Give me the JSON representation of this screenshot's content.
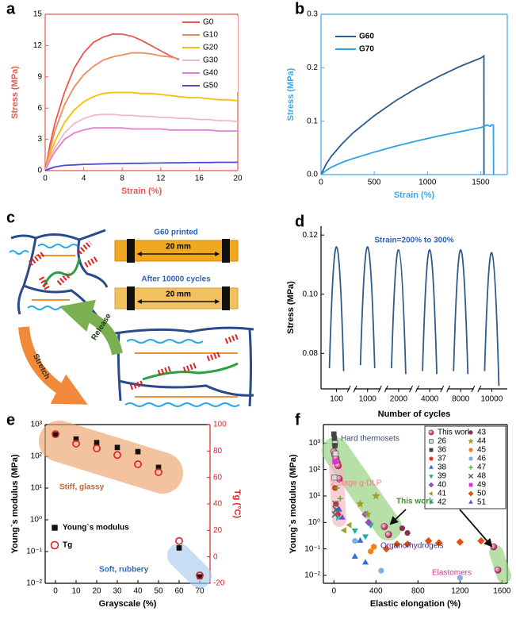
{
  "chart_data": [
    {
      "panel": "a",
      "type": "line",
      "x_label": "Strain (%)",
      "y_label": "Stress (MPa)",
      "axis_color": "#e8584f",
      "legend": "upper right",
      "xlim": [
        0,
        20
      ],
      "ylim": [
        0,
        15
      ],
      "xticks": [
        0,
        4,
        8,
        12,
        16,
        20
      ],
      "yticks": [
        0,
        3,
        6,
        9,
        12,
        15
      ],
      "x": [
        0,
        0.5,
        1,
        2,
        3,
        4,
        5,
        6,
        7,
        8,
        9,
        10,
        11,
        12,
        13,
        14,
        15,
        16,
        17,
        18,
        19,
        20
      ],
      "series": [
        {
          "name": "G0",
          "color": "#e8584f",
          "values": [
            0,
            2.5,
            4.5,
            7.5,
            9.8,
            11.3,
            12.3,
            12.8,
            13.1,
            13.1,
            12.9,
            12.5,
            12,
            11.5,
            11,
            10.6,
            null,
            null,
            null,
            null,
            null,
            null
          ]
        },
        {
          "name": "G10",
          "color": "#ef8a5c",
          "values": [
            0,
            2,
            3.8,
            6.3,
            8,
            9.2,
            10,
            10.6,
            10.9,
            11.1,
            11.3,
            11.3,
            11.2,
            11,
            10.9,
            10.7,
            10.5,
            10.4,
            10.3,
            10.2,
            10.1,
            10.0
          ]
        },
        {
          "name": "G20",
          "color": "#f2c200",
          "values": [
            0,
            1.5,
            2.8,
            4.6,
            5.8,
            6.6,
            7.1,
            7.4,
            7.5,
            7.5,
            7.5,
            7.4,
            7.4,
            7.3,
            7.2,
            7.1,
            7,
            7,
            6.9,
            6.8,
            6.8,
            6.7
          ]
        },
        {
          "name": "G30",
          "color": "#f2b8c8",
          "values": [
            0,
            1.2,
            2.2,
            3.6,
            4.5,
            5,
            5.3,
            5.4,
            5.4,
            5.3,
            5.3,
            5.2,
            5.2,
            5.1,
            5.1,
            5,
            5,
            4.9,
            4.9,
            4.8,
            4.8,
            4.7
          ]
        },
        {
          "name": "G40",
          "color": "#e47fd8",
          "values": [
            0,
            1,
            1.8,
            3,
            3.6,
            3.9,
            4.1,
            4.1,
            4.1,
            4.1,
            4,
            4,
            4,
            4,
            3.9,
            3.9,
            3.9,
            3.9,
            3.9,
            3.8,
            3.8,
            3.8
          ]
        },
        {
          "name": "G50",
          "color": "#4e4bd0",
          "values": [
            0,
            0.2,
            0.35,
            0.5,
            0.55,
            0.6,
            0.62,
            0.65,
            0.67,
            0.68,
            0.7,
            0.7,
            0.72,
            0.73,
            0.75,
            0.75,
            0.77,
            0.78,
            0.78,
            0.8,
            0.8,
            0.8
          ]
        }
      ]
    },
    {
      "panel": "b",
      "type": "line",
      "x_label": "Strain (%)",
      "y_label": "Stress (MPa)",
      "axis_color": "#3ea6e8",
      "legend": "upper left",
      "xlim": [
        0,
        1750
      ],
      "ylim": [
        0,
        0.3
      ],
      "xticks": [
        0,
        500,
        1000,
        1500
      ],
      "yticks": [
        {
          "value": 0,
          "label": "0.0"
        },
        0.1,
        0.2,
        0.3
      ],
      "x": [
        0,
        50,
        100,
        200,
        300,
        500,
        700,
        900,
        1100,
        1300,
        1500,
        1530,
        1531,
        1560,
        1590,
        1600,
        1620,
        1621
      ],
      "series": [
        {
          "name": "G60",
          "color": "#2f5a8a",
          "values": [
            0,
            0.02,
            0.035,
            0.058,
            0.078,
            0.11,
            0.138,
            0.162,
            0.183,
            0.202,
            0.218,
            0.222,
            0,
            null,
            null,
            null,
            null,
            null
          ]
        },
        {
          "name": "G70",
          "color": "#29a3e6",
          "values": [
            0,
            0.008,
            0.014,
            0.023,
            0.03,
            0.042,
            0.053,
            0.063,
            0.072,
            0.08,
            0.088,
            0.09,
            0.09,
            0.093,
            0.09,
            0.093,
            0.093,
            0
          ]
        }
      ]
    },
    {
      "panel": "d",
      "type": "cycles",
      "annotation": "Strain=200% to 300%",
      "x_label": "Number of cycles",
      "y_label": "Stress (MPa)",
      "color": "#2f5a8a",
      "ylim": [
        0.068,
        0.123
      ],
      "yticks": [
        0.08,
        {
          "value": 0.1,
          "label": "0.10"
        },
        0.12
      ],
      "categories": [
        "100",
        "1000",
        "2000",
        "4000",
        "8000",
        "10000"
      ],
      "start": [
        0.075,
        0.076,
        0.075,
        0.074,
        0.074,
        0.074
      ],
      "peak": [
        0.116,
        0.116,
        0.115,
        0.115,
        0.115,
        0.114
      ],
      "end": [
        0.074,
        0.075,
        0.073,
        0.073,
        0.073,
        0.069
      ]
    },
    {
      "panel": "e",
      "type": "scatter",
      "x_label": "Grayscale (%)",
      "y_label": "Young`s modulus (MPa)",
      "y2_label": "Tg (°C)",
      "y2_color": "#e02020",
      "legend": "lower left",
      "xlim": [
        -5,
        75
      ],
      "xticks": [
        0,
        10,
        20,
        30,
        40,
        50,
        60,
        70
      ],
      "ylim": [
        0.01,
        1000
      ],
      "log_y": true,
      "yticks": [
        {
          "value": 0.01,
          "label": "10⁻²"
        },
        {
          "value": 0.1,
          "label": "10⁻¹"
        },
        {
          "value": 1,
          "label": "10⁰"
        },
        {
          "value": 10,
          "label": "10¹"
        },
        {
          "value": 100,
          "label": "10²"
        },
        {
          "value": 1000,
          "label": "10³"
        }
      ],
      "y2lim": [
        -20,
        100
      ],
      "y2ticks": [
        -20,
        0,
        20,
        40,
        60,
        80,
        100
      ],
      "x": [
        0,
        10,
        20,
        30,
        40,
        50,
        60,
        70
      ],
      "annotations": [
        {
          "text": "Stiff, glassy",
          "color": "#c8642a"
        },
        {
          "text": "Soft, rubbery",
          "color": "#2a6ad0"
        }
      ],
      "series": [
        {
          "name": "Young`s modulus",
          "color": "#111111",
          "marker": "square",
          "values": [
            480,
            350,
            270,
            190,
            140,
            45,
            0.13,
            0.016
          ]
        },
        {
          "name": "Tg",
          "color": "#e02020",
          "marker": "circle-open",
          "axis": "y2",
          "values": [
            92.8,
            85.6,
            82,
            77,
            70,
            64,
            12,
            -14
          ]
        }
      ]
    },
    {
      "panel": "f",
      "type": "scatter",
      "x_label": "Elastic elongation (%)",
      "y_label": "Young`s modulus (MPa)",
      "legend": "upper right",
      "legend_columns": 2,
      "xlim": [
        -100,
        1650
      ],
      "xticks": [
        0,
        400,
        800,
        1200,
        1600
      ],
      "ylim": [
        0.005,
        5000
      ],
      "log_y": true,
      "yticks": [
        {
          "value": 0.01,
          "label": "10⁻²"
        },
        {
          "value": 0.1,
          "label": "10⁻¹"
        },
        {
          "value": 1,
          "label": "10⁰"
        },
        {
          "value": 10,
          "label": "10¹"
        },
        {
          "value": 100,
          "label": "10²"
        },
        {
          "value": 1000,
          "label": "10³"
        }
      ],
      "annotations": [
        {
          "text": "Hard thermosets",
          "color": "#3a4a6a"
        },
        {
          "text": "2-stage g-DLP",
          "color": "#f07a8a"
        },
        {
          "text": "This work",
          "color": "#3f8f2a"
        },
        {
          "text": "Organo/hydrogels",
          "color": "#4b2a90"
        },
        {
          "text": "Elastomers",
          "color": "#e0309a"
        }
      ],
      "series": [
        {
          "name": "This work",
          "color": "#d9417f",
          "marker": "sphere",
          "x": [
            0,
            10,
            20,
            30,
            40,
            50,
            480,
            520,
            1520,
            1560
          ],
          "values": [
            480,
            350,
            270,
            190,
            140,
            45,
            0.7,
            0.35,
            0.12,
            0.016
          ]
        },
        {
          "name": "26",
          "color": "#777777",
          "marker": "square-hatched",
          "x": [
            10,
            15,
            5
          ],
          "values": [
            1000,
            400,
            50
          ]
        },
        {
          "name": "36",
          "color": "#444444",
          "marker": "square",
          "x": [
            0,
            5,
            10
          ],
          "values": [
            2200,
            1500,
            800
          ]
        },
        {
          "name": "37",
          "color": "#e03030",
          "marker": "circle",
          "x": [
            10,
            20,
            40
          ],
          "values": [
            20,
            5,
            2
          ]
        },
        {
          "name": "38",
          "color": "#3070d0",
          "marker": "triangle",
          "x": [
            300,
            200,
            250
          ],
          "values": [
            0.03,
            0.05,
            0.2
          ]
        },
        {
          "name": "39",
          "color": "#20b0a0",
          "marker": "triangle-down",
          "x": [
            200,
            300,
            350
          ],
          "values": [
            0.5,
            0.3,
            0.8
          ]
        },
        {
          "name": "40",
          "color": "#9050c0",
          "marker": "diamond",
          "x": [
            300,
            330
          ],
          "values": [
            2,
            1
          ]
        },
        {
          "name": "41",
          "color": "#a0a030",
          "marker": "triangle-left",
          "x": [
            100,
            150
          ],
          "values": [
            0.5,
            0.8
          ]
        },
        {
          "name": "42",
          "color": "#30c0d0",
          "marker": "triangle-right",
          "x": [
            20,
            40
          ],
          "values": [
            3,
            1.5
          ]
        },
        {
          "name": "43",
          "color": "#8b3050",
          "marker": "circle",
          "x": [
            650,
            700
          ],
          "values": [
            0.6,
            0.4
          ]
        },
        {
          "name": "44",
          "color": "#a0a020",
          "marker": "star",
          "x": [
            400,
            320,
            250
          ],
          "values": [
            10,
            2,
            5
          ]
        },
        {
          "name": "45",
          "color": "#f08020",
          "marker": "hexagon",
          "x": [
            380,
            350
          ],
          "values": [
            0.12,
            0.08
          ]
        },
        {
          "name": "46",
          "color": "#80b0e0",
          "marker": "circle",
          "x": [
            200,
            450,
            1200
          ],
          "values": [
            0.2,
            0.015,
            0.008
          ]
        },
        {
          "name": "47",
          "color": "#60b030",
          "marker": "plus",
          "x": [
            30,
            60
          ],
          "values": [
            20,
            8
          ]
        },
        {
          "name": "48",
          "color": "#606060",
          "marker": "x",
          "x": [
            10,
            20,
            15
          ],
          "values": [
            2,
            3,
            5
          ]
        },
        {
          "name": "49",
          "color": "#e030e0",
          "marker": "square",
          "x": [
            10
          ],
          "values": [
            200
          ]
        },
        {
          "name": "50",
          "color": "#e05010",
          "marker": "diamond",
          "x": [
            600,
            700,
            900,
            1000,
            1200,
            1400,
            500
          ],
          "values": [
            0.15,
            0.15,
            0.2,
            0.17,
            0.18,
            0.2,
            0.1
          ]
        },
        {
          "name": "51",
          "color": "#7050d0",
          "marker": "triangle",
          "x": [
            50,
            80
          ],
          "values": [
            3,
            1.5
          ]
        }
      ]
    }
  ],
  "diagram": {
    "panel": "c",
    "samples": [
      {
        "title": "G60 printed",
        "length": "20 mm"
      },
      {
        "title": "After 10000 cycles",
        "length": "20 mm"
      }
    ],
    "stretch": "Stretch",
    "release": "Release"
  }
}
